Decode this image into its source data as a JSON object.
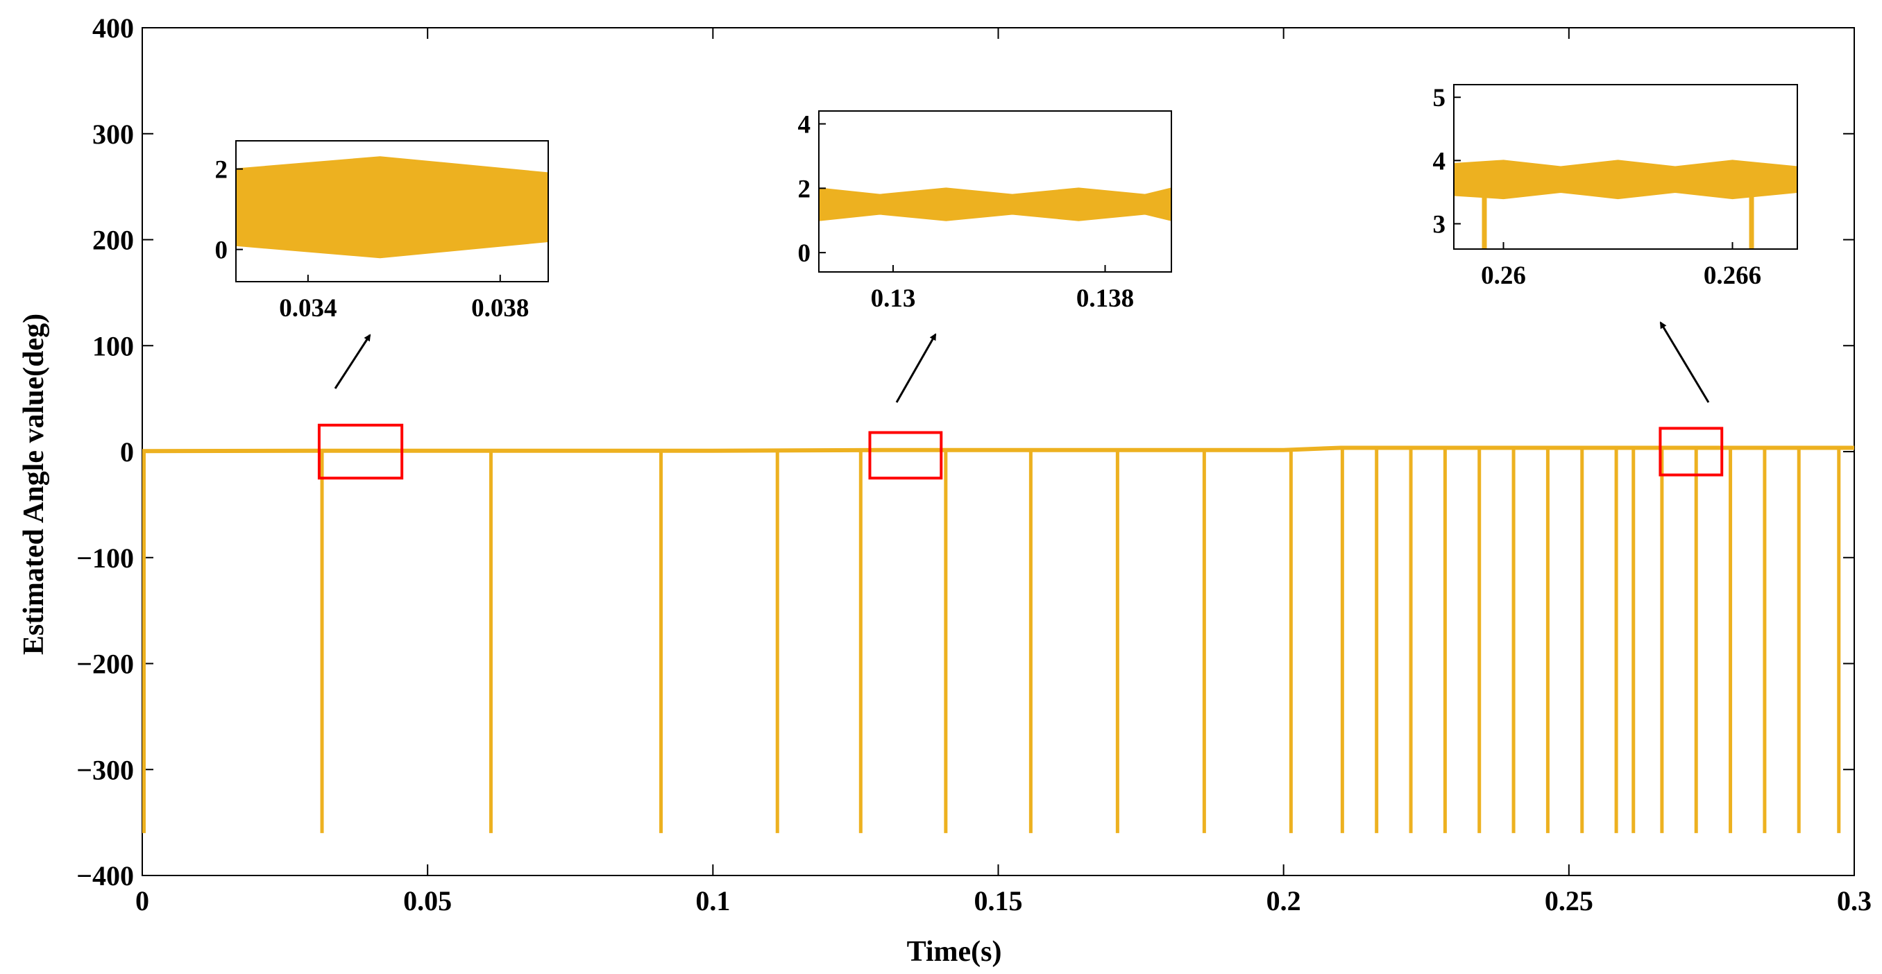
{
  "chart_data": {
    "type": "line",
    "xlabel": "Time(s)",
    "ylabel": "Estimated Angle value(deg)",
    "xlim": [
      0,
      0.3
    ],
    "ylim": [
      -400,
      400
    ],
    "x_ticks": [
      "0",
      "0.05",
      "0.1",
      "0.15",
      "0.2",
      "0.25",
      "0.3"
    ],
    "y_ticks": [
      "400",
      "300",
      "200",
      "100",
      "0",
      "−100",
      "−200",
      "−300",
      "−400"
    ],
    "grid": false,
    "series_color": "#EDB120",
    "highlight_color": "#FF0000",
    "series": [
      {
        "baseline": [
          [
            0,
            0.5
          ],
          [
            0.03,
            0.8
          ],
          [
            0.1,
            0.8
          ],
          [
            0.13,
            1.5
          ],
          [
            0.2,
            1.5
          ],
          [
            0.21,
            3.6
          ],
          [
            0.3,
            3.6
          ]
        ],
        "spikes_x": [
          0.0003,
          0.0315,
          0.0611,
          0.0909,
          0.1113,
          0.1259,
          0.1408,
          0.1557,
          0.1709,
          0.1861,
          0.2013,
          0.2103,
          0.2163,
          0.2223,
          0.2283,
          0.2343,
          0.2403,
          0.2463,
          0.2523,
          0.2583,
          0.2613,
          0.2663,
          0.2723,
          0.2783,
          0.2843,
          0.2903,
          0.2973
        ],
        "spike_min": -360
      }
    ],
    "highlight_boxes": [
      {
        "x": [
          0.031,
          0.0455
        ],
        "y": [
          -25,
          25
        ]
      },
      {
        "x": [
          0.1275,
          0.14
        ],
        "y": [
          -25,
          18
        ]
      },
      {
        "x": [
          0.266,
          0.2768
        ],
        "y": [
          -22,
          22
        ]
      }
    ],
    "insets": [
      {
        "xlim": [
          0.0325,
          0.039
        ],
        "ylim": [
          -0.8,
          2.7
        ],
        "x_ticks": [
          0.034,
          0.038
        ],
        "x_tick_labels": [
          "0.034",
          "0.038"
        ],
        "y_ticks": [
          0,
          2
        ],
        "y_tick_labels": [
          "0",
          "2"
        ],
        "band": [
          [
            0.0325,
            0.1,
            2.0
          ],
          [
            0.0355,
            -0.2,
            2.3
          ],
          [
            0.039,
            0.2,
            1.9
          ]
        ]
      },
      {
        "xlim": [
          0.1272,
          0.1405
        ],
        "ylim": [
          -0.6,
          4.4
        ],
        "x_ticks": [
          0.13,
          0.138
        ],
        "x_tick_labels": [
          "0.13",
          "0.138"
        ],
        "y_ticks": [
          0,
          2,
          4
        ],
        "y_tick_labels": [
          "0",
          "2",
          "4"
        ],
        "band": [
          [
            0.1272,
            1.0,
            2.0
          ],
          [
            0.1295,
            1.2,
            1.8
          ],
          [
            0.132,
            1.0,
            2.0
          ],
          [
            0.1345,
            1.2,
            1.8
          ],
          [
            0.137,
            1.0,
            2.0
          ],
          [
            0.1395,
            1.2,
            1.8
          ],
          [
            0.1405,
            1.0,
            2.0
          ]
        ]
      },
      {
        "xlim": [
          0.2587,
          0.2677
        ],
        "ylim": [
          2.6,
          5.2
        ],
        "x_ticks": [
          0.26,
          0.266
        ],
        "x_tick_labels": [
          "0.26",
          "0.266"
        ],
        "y_ticks": [
          3,
          4,
          5
        ],
        "y_tick_labels": [
          "3",
          "4",
          "5"
        ],
        "band": [
          [
            0.2587,
            3.45,
            3.95
          ],
          [
            0.26,
            3.4,
            4.0
          ],
          [
            0.2615,
            3.5,
            3.9
          ],
          [
            0.263,
            3.4,
            4.0
          ],
          [
            0.2645,
            3.5,
            3.9
          ],
          [
            0.266,
            3.4,
            4.0
          ],
          [
            0.2677,
            3.5,
            3.9
          ]
        ],
        "spikes_x": [
          0.2595,
          0.2665
        ],
        "spike_min": 2.6
      }
    ]
  }
}
